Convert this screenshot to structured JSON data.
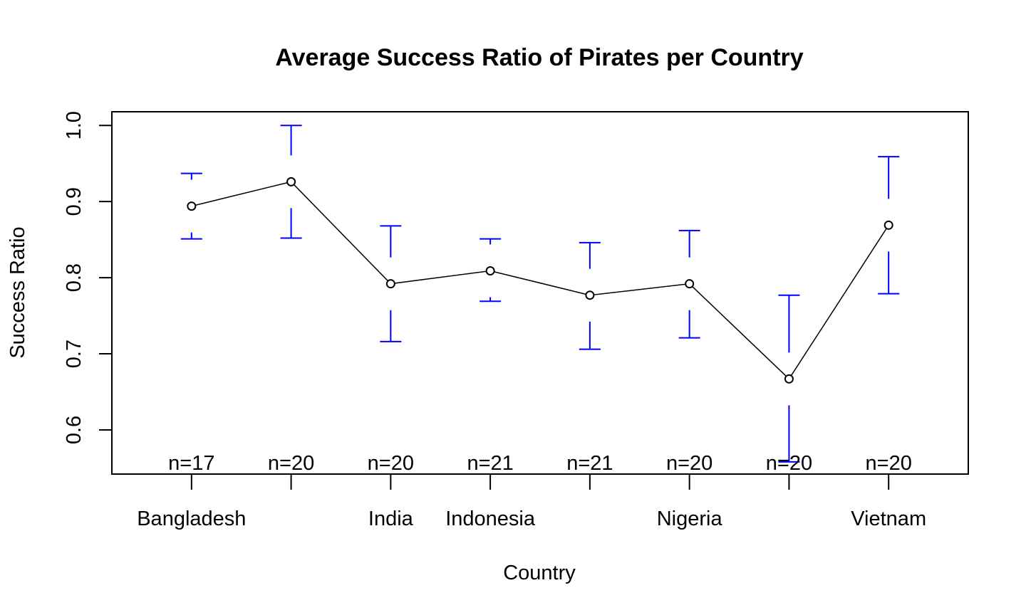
{
  "chart_data": {
    "type": "line",
    "title": "Average Success Ratio of Pirates per Country",
    "xlabel": "Country",
    "ylabel": "Success Ratio",
    "categories": [
      "Bangladesh",
      "",
      "India",
      "Indonesia",
      "",
      "Nigeria",
      "",
      "Vietnam"
    ],
    "means": [
      0.894,
      0.926,
      0.792,
      0.809,
      0.777,
      0.792,
      0.667,
      0.869
    ],
    "lower": [
      0.851,
      0.852,
      0.716,
      0.769,
      0.706,
      0.721,
      0.558,
      0.779
    ],
    "upper": [
      0.937,
      1.0,
      0.868,
      0.851,
      0.846,
      0.862,
      0.777,
      0.959
    ],
    "n_labels": [
      "n=17",
      "n=20",
      "n=20",
      "n=21",
      "n=21",
      "n=20",
      "n=20",
      "n=20"
    ],
    "yticks": [
      0.6,
      0.7,
      0.8,
      0.9,
      1.0
    ],
    "ytick_labels": [
      "0.6",
      "0.7",
      "0.8",
      "0.9",
      "1.0"
    ],
    "ylim": [
      0.542,
      1.018
    ],
    "xlim": [
      0.2,
      8.8
    ],
    "grid": false,
    "legend": "none",
    "colors": {
      "line": "#000000",
      "points": "#000000",
      "error_bars": "#0000ff",
      "frame": "#000000"
    }
  }
}
